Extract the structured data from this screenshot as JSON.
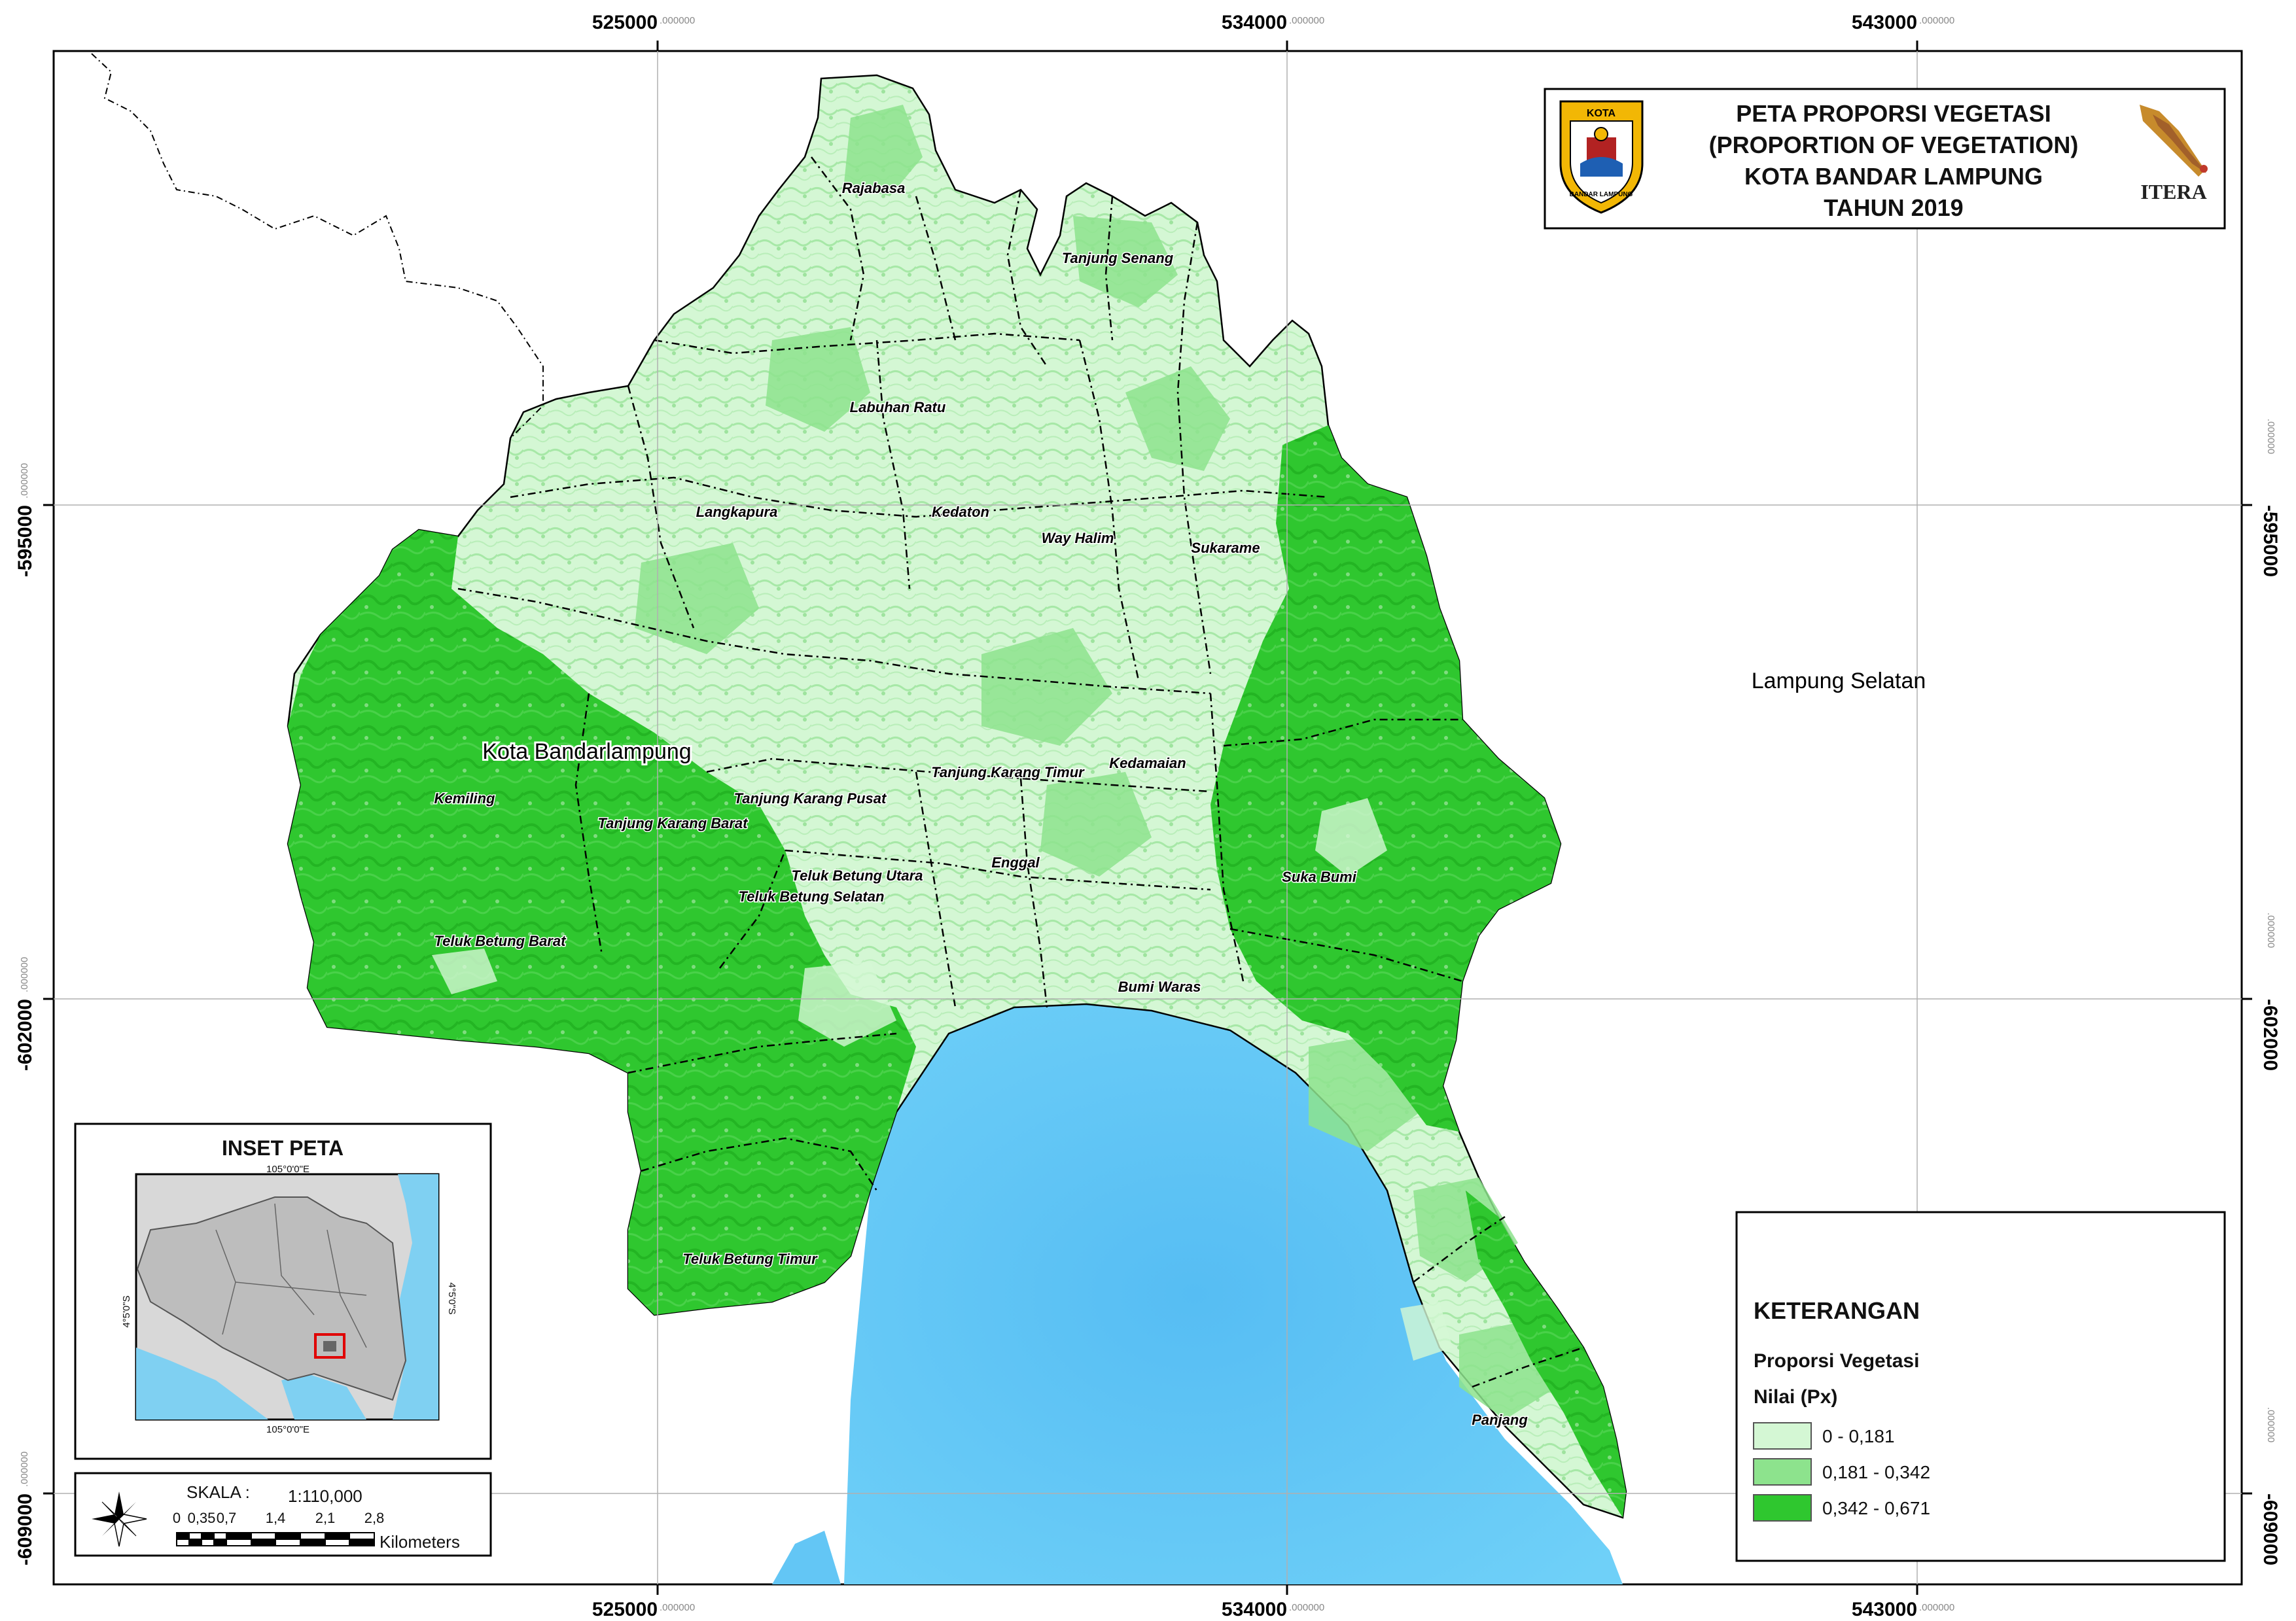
{
  "map": {
    "title_lines": [
      "PETA PROPORSI VEGETASI",
      "(PROPORTION OF VEGETATION)",
      "KOTA BANDAR LAMPUNG",
      "TAHUN 2019"
    ],
    "logo_left_text": [
      "KOTA",
      "BANDAR LAMPUNG"
    ],
    "logo_right_text": "ITERA",
    "region_outside": "Lampung Selatan",
    "city_label": "Kota Bandarlampung",
    "districts": [
      "Rajabasa",
      "Tanjung Senang",
      "Labuhan Ratu",
      "Langkapura",
      "Kedaton",
      "Way Halim",
      "Sukarame",
      "Kemiling",
      "Tanjung Karang Pusat",
      "Tanjung Karang Timur",
      "Kedamaian",
      "Tanjung Karang Barat",
      "Teluk Betung Utara",
      "Teluk Betung Selatan",
      "Enggal",
      "Suka Bumi",
      "Teluk Betung Barat",
      "Bumi Waras",
      "Teluk Betung Timur",
      "Panjang"
    ],
    "colors": {
      "class_low": "#d4f7d4",
      "class_mid": "#8de38d",
      "class_high": "#2fc72f",
      "sea": "#63c6f5",
      "grid": "#b0b0b0"
    }
  },
  "grid": {
    "x_labels": [
      "525000",
      "534000",
      "543000"
    ],
    "y_labels": [
      "-595000",
      "-602000",
      "-609000"
    ],
    "suffix": ".000000"
  },
  "legend": {
    "heading": "KETERANGAN",
    "subheading": "Proporsi Vegetasi",
    "value_label": "Nilai (Px)",
    "classes": [
      {
        "label": "0 - 0,181",
        "color": "#d4f7d4"
      },
      {
        "label": "0,181 - 0,342",
        "color": "#8de38d"
      },
      {
        "label": "0,342 - 0,671",
        "color": "#2fc72f"
      }
    ]
  },
  "inset": {
    "title": "INSET PETA",
    "lon_label": "105°0'0\"E",
    "lat_label": "4°5'0\"S"
  },
  "scale": {
    "label": "SKALA :",
    "ratio": "1:110,000",
    "ticks": [
      "0",
      "0,35",
      "0,7",
      "1,4",
      "2,1",
      "2,8"
    ],
    "unit": "Kilometers"
  }
}
